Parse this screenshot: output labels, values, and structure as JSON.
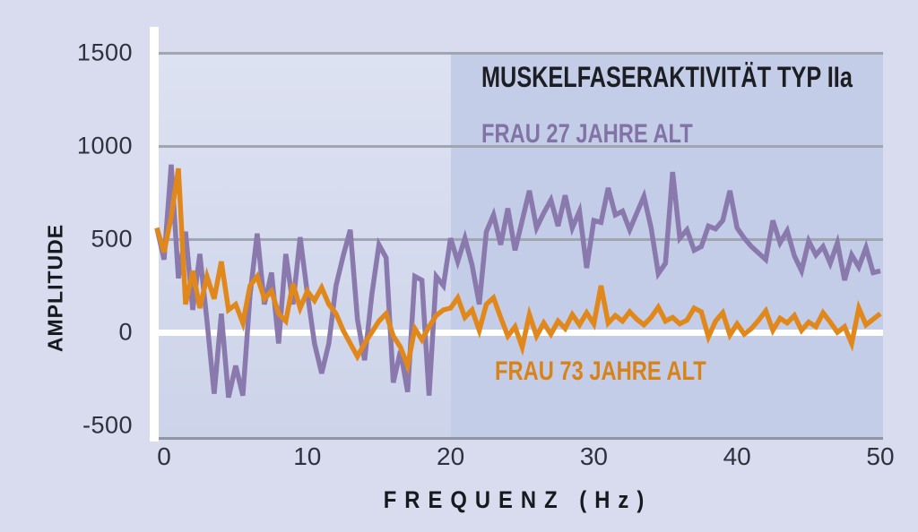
{
  "figure": {
    "background_color": "#d8dcee",
    "plot_background_color": "#d4d9ec",
    "gridline_color": "#a0a5b0",
    "zero_line_color": "#ffffff"
  },
  "chart_data": {
    "type": "line",
    "title": "MUSKELFASERAKTIVITÄT TYP IIa",
    "xlabel": "FREQUENZ (Hz)",
    "ylabel": "AMPLITUDE",
    "xlim": [
      -0.8,
      50
    ],
    "ylim": [
      -500,
      1500
    ],
    "x_ticks": [
      0,
      10,
      20,
      30,
      40,
      50
    ],
    "y_ticks": [
      1500,
      1000,
      500,
      0,
      -500
    ],
    "grid": "horizontal-only",
    "legend_position": "inline-annotations",
    "highlight_region": {
      "x_from": 20,
      "x_to": 50,
      "color": "#c4cde7",
      "note": "shaded band over 20-50 Hz"
    },
    "x_hz_start": -0.5,
    "x_hz_step": 0.5,
    "series": [
      {
        "name": "FRAU 27 JAHRE ALT",
        "color": "#8a79ad",
        "label_color": "#8273a6",
        "values": [
          560,
          390,
          900,
          290,
          540,
          120,
          420,
          60,
          -330,
          100,
          -350,
          -180,
          -340,
          200,
          530,
          150,
          320,
          -60,
          420,
          150,
          510,
          210,
          -60,
          -220,
          -60,
          250,
          410,
          550,
          70,
          -150,
          200,
          470,
          400,
          -270,
          -100,
          -320,
          300,
          280,
          -340,
          300,
          250,
          505,
          380,
          505,
          360,
          150,
          540,
          630,
          470,
          665,
          440,
          600,
          760,
          560,
          640,
          710,
          570,
          735,
          560,
          650,
          345,
          600,
          590,
          775,
          630,
          650,
          550,
          640,
          730,
          560,
          315,
          370,
          860,
          505,
          550,
          440,
          460,
          570,
          555,
          600,
          760,
          560,
          505,
          460,
          425,
          390,
          600,
          480,
          545,
          410,
          330,
          490,
          415,
          460,
          370,
          480,
          280,
          415,
          350,
          455,
          320,
          330
        ]
      },
      {
        "name": "FRAU 73 JAHRE ALT",
        "color": "#e0881c",
        "label_color": "#d8821a",
        "values": [
          560,
          430,
          620,
          880,
          150,
          330,
          130,
          300,
          180,
          380,
          120,
          150,
          50,
          250,
          300,
          180,
          220,
          100,
          60,
          260,
          130,
          220,
          170,
          240,
          150,
          100,
          10,
          -60,
          -130,
          -60,
          0,
          60,
          100,
          -20,
          -80,
          -180,
          20,
          -40,
          30,
          90,
          120,
          130,
          185,
          80,
          120,
          10,
          150,
          185,
          80,
          -20,
          30,
          -80,
          95,
          -20,
          50,
          -10,
          60,
          20,
          95,
          40,
          105,
          45,
          250,
          50,
          90,
          60,
          110,
          70,
          40,
          80,
          135,
          60,
          80,
          45,
          65,
          130,
          110,
          -25,
          60,
          105,
          -15,
          45,
          -10,
          20,
          65,
          115,
          10,
          75,
          50,
          90,
          10,
          55,
          30,
          105,
          55,
          0,
          30,
          -60,
          130,
          40,
          70,
          100
        ]
      }
    ]
  },
  "labels": {
    "title": "MUSKELFASERAKTIVITÄT TYP IIa",
    "legend_27": "FRAU 27 JAHRE ALT",
    "legend_73": "FRAU 73 JAHRE ALT",
    "y_axis": "AMPLITUDE",
    "x_axis": "FREQUENZ (Hz)"
  }
}
